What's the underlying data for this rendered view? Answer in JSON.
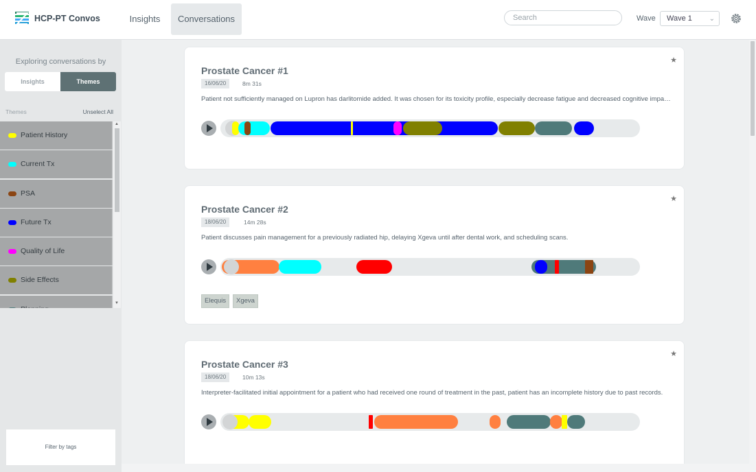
{
  "header": {
    "app_name": "HCP-PT Convos",
    "tabs": [
      {
        "label": "Insights",
        "active": false
      },
      {
        "label": "Conversations",
        "active": true
      }
    ],
    "search_placeholder": "Search",
    "wave_label": "Wave",
    "wave_value": "Wave 1"
  },
  "sidebar": {
    "heading": "Exploring conversations by",
    "toggle": {
      "insights_label": "Insights",
      "themes_label": "Themes",
      "selected": "Themes"
    },
    "themes_header": "Themes",
    "unselect_label": "Unselect All",
    "themes": [
      {
        "label": "Patient History",
        "color": "#ffff00"
      },
      {
        "label": "Current Tx",
        "color": "#00ffff"
      },
      {
        "label": "PSA",
        "color": "#8b4513"
      },
      {
        "label": "Future Tx",
        "color": "#0000ff"
      },
      {
        "label": "Quality of Life",
        "color": "#ff00ff"
      },
      {
        "label": "Side Effects",
        "color": "#808000"
      },
      {
        "label": "Planning",
        "color": "#4f7a7a"
      }
    ],
    "filter_label": "Filter by tags"
  },
  "conversations": [
    {
      "title": "Prostate Cancer #1",
      "date": "16/06/20",
      "duration": "8m 31s",
      "description": "Patient not sufficiently managed on Lupron has darlitomide added. It was chosen for its toxicity profile, especially decrease fatigue and decreased cognitive impairment.",
      "tags": []
    },
    {
      "title": "Prostate Cancer #2",
      "date": "18/06/20",
      "duration": "14m 28s",
      "description": "Patient discusses pain management for a previously radiated hip, delaying Xgeva until after dental work, and scheduling scans.",
      "tags": [
        "Elequis",
        "Xgeva"
      ]
    },
    {
      "title": "Prostate Cancer #3",
      "date": "18/06/20",
      "duration": "10m 13s",
      "description": "Interpreter-facilitated initial appointment for a patient who had received one round of treatment in the past, patient has an incomplete history due to past records.",
      "tags": []
    }
  ]
}
